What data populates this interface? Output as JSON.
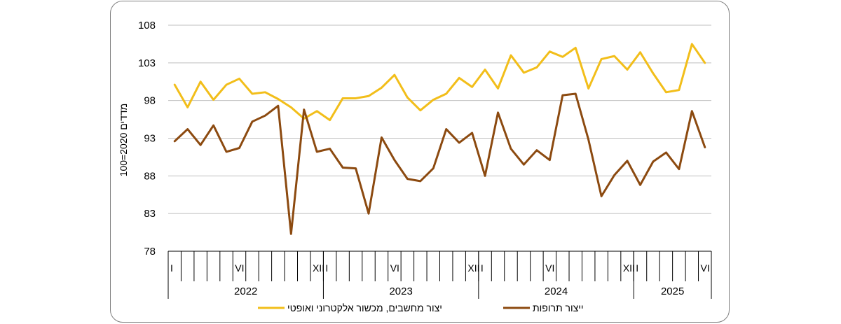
{
  "chart_data": {
    "type": "line",
    "ylabel": "מדדים 2020=100",
    "ylim": [
      78,
      108
    ],
    "yticks": [
      78,
      83,
      88,
      93,
      98,
      103,
      108
    ],
    "grid": true,
    "legend_position": "bottom",
    "month_markers": [
      {
        "index": 0,
        "label": "I"
      },
      {
        "index": 5,
        "label": "VI"
      },
      {
        "index": 11,
        "label": "XII"
      },
      {
        "index": 12,
        "label": "I"
      },
      {
        "index": 17,
        "label": "VI"
      },
      {
        "index": 23,
        "label": "XII"
      },
      {
        "index": 24,
        "label": "I"
      },
      {
        "index": 29,
        "label": "VI"
      },
      {
        "index": 35,
        "label": "XII"
      },
      {
        "index": 36,
        "label": "I"
      },
      {
        "index": 41,
        "label": "VI"
      }
    ],
    "years": [
      {
        "label": "2022",
        "start": 0,
        "months": 12
      },
      {
        "label": "2023",
        "start": 12,
        "months": 12
      },
      {
        "label": "2024",
        "start": 24,
        "months": 12
      },
      {
        "label": "2025",
        "start": 36,
        "months": 6
      }
    ],
    "series": [
      {
        "name": "יצור מחשבים, מכשור אלקטרוני ואופטי",
        "color": "#f2be1a",
        "values": [
          100.1,
          97.1,
          100.5,
          98.1,
          100.1,
          100.9,
          98.9,
          99.1,
          98.2,
          97.1,
          95.6,
          96.6,
          95.4,
          98.3,
          98.3,
          98.6,
          99.7,
          101.4,
          98.4,
          96.7,
          98.1,
          98.9,
          101.0,
          99.8,
          102.1,
          99.6,
          104.0,
          101.7,
          102.4,
          104.5,
          103.8,
          105.0,
          99.6,
          103.5,
          103.9,
          102.1,
          104.4,
          101.6,
          99.1,
          99.4,
          105.5,
          103.0
        ]
      },
      {
        "name": "ייצור תרופות",
        "color": "#8c4a10",
        "values": [
          92.6,
          94.2,
          92.1,
          94.7,
          91.2,
          91.7,
          95.2,
          96.0,
          97.3,
          80.3,
          96.8,
          91.2,
          91.6,
          89.1,
          89.0,
          83.0,
          93.1,
          90.1,
          87.6,
          87.3,
          89.0,
          94.2,
          92.4,
          93.7,
          88.0,
          96.4,
          91.6,
          89.5,
          91.4,
          90.1,
          98.7,
          98.9,
          92.8,
          85.3,
          88.1,
          90.0,
          86.8,
          89.9,
          91.1,
          88.9,
          96.6,
          91.8
        ]
      }
    ]
  }
}
